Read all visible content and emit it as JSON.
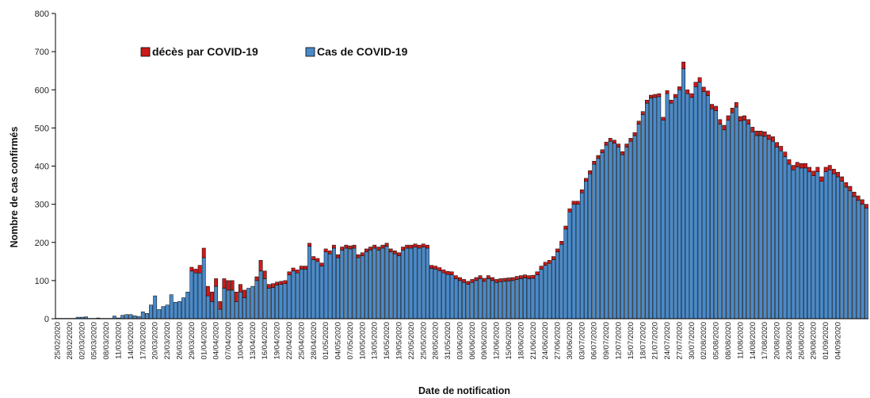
{
  "chart_data": {
    "type": "bar",
    "stacked": true,
    "title": "",
    "xlabel": "Date de notification",
    "ylabel": "Nombre de cas confirmés",
    "ylim": [
      0,
      800
    ],
    "yticks": [
      0,
      100,
      200,
      300,
      400,
      500,
      600,
      700,
      800
    ],
    "grid": false,
    "legend_position": "top-left",
    "start_date": "2020-02-25",
    "end_date": "2020-09-04",
    "xtick_labels": [
      "25/02/2020",
      "28/02/2020",
      "02/03/2020",
      "05/03/2020",
      "08/03/2020",
      "11/03/2020",
      "14/03/2020",
      "17/03/2020",
      "20/03/2020",
      "23/03/2020",
      "26/03/2020",
      "29/03/2020",
      "01/04/2020",
      "04/04/2020",
      "07/04/2020",
      "10/04/2020",
      "13/04/2020",
      "16/04/2020",
      "19/04/2020",
      "22/04/2020",
      "25/04/2020",
      "28/04/2020",
      "01/05/2020",
      "04/05/2020",
      "07/05/2020",
      "10/05/2020",
      "13/05/2020",
      "16/05/2020",
      "19/05/2020",
      "22/05/2020",
      "25/05/2020",
      "28/05/2020",
      "31/05/2020",
      "03/06/2020",
      "06/06/2020",
      "09/06/2020",
      "12/06/2020",
      "15/06/2020",
      "18/06/2020",
      "21/06/2020",
      "24/06/2020",
      "27/06/2020",
      "30/06/2020",
      "03/07/2020",
      "06/07/2020",
      "09/07/2020",
      "12/07/2020",
      "15/07/2020",
      "18/07/2020",
      "21/07/2020",
      "24/07/2020",
      "27/07/2020",
      "30/07/2020",
      "02/08/2020",
      "05/08/2020",
      "08/08/2020",
      "11/08/2020",
      "14/08/2020",
      "17/08/2020",
      "20/08/2020",
      "23/08/2020",
      "26/08/2020",
      "29/08/2020",
      "01/09/2020",
      "04/09/2020"
    ],
    "series": [
      {
        "name": "Cas de COVID-19",
        "color": "#4a8ac9",
        "values": [
          1,
          1,
          1,
          1,
          1,
          4,
          4,
          5,
          1,
          1,
          2,
          1,
          1,
          1,
          7,
          2,
          9,
          11,
          11,
          8,
          6,
          18,
          14,
          36,
          60,
          24,
          32,
          36,
          63,
          43,
          45,
          55,
          70,
          125,
          120,
          120,
          160,
          60,
          45,
          85,
          25,
          80,
          75,
          75,
          45,
          70,
          55,
          80,
          85,
          100,
          125,
          105,
          80,
          82,
          88,
          90,
          92,
          115,
          125,
          120,
          130,
          130,
          190,
          155,
          150,
          138,
          175,
          170,
          185,
          160,
          180,
          185,
          183,
          185,
          160,
          165,
          175,
          180,
          185,
          180,
          185,
          190,
          175,
          170,
          165,
          180,
          185,
          185,
          188,
          185,
          188,
          185,
          132,
          130,
          126,
          120,
          116,
          115,
          105,
          100,
          95,
          90,
          95,
          100,
          105,
          98,
          105,
          100,
          95,
          97,
          98,
          99,
          100,
          103,
          105,
          107,
          105,
          106,
          115,
          130,
          140,
          145,
          155,
          175,
          195,
          235,
          280,
          300,
          300,
          330,
          360,
          380,
          405,
          420,
          435,
          455,
          465,
          460,
          450,
          430,
          450,
          465,
          480,
          510,
          535,
          565,
          578,
          580,
          582,
          520,
          590,
          565,
          580,
          600,
          655,
          590,
          580,
          608,
          620,
          595,
          585,
          550,
          545,
          510,
          495,
          520,
          540,
          555,
          518,
          520,
          510,
          490,
          480,
          480,
          478,
          470,
          465,
          450,
          440,
          425,
          405,
          390,
          398,
          395,
          395,
          385,
          375,
          385,
          360,
          385,
          390,
          380,
          372,
          360,
          345,
          335,
          320,
          310,
          300,
          290
        ]
      },
      {
        "name": "décès par COVID-19",
        "color": "#cc1a1a",
        "values": [
          0,
          0,
          0,
          0,
          0,
          0,
          0,
          0,
          0,
          0,
          0,
          0,
          0,
          0,
          0,
          0,
          0,
          0,
          0,
          0,
          0,
          0,
          0,
          0,
          0,
          0,
          0,
          0,
          0,
          0,
          0,
          0,
          0,
          10,
          10,
          20,
          25,
          25,
          25,
          20,
          20,
          25,
          25,
          25,
          25,
          20,
          20,
          0,
          0,
          10,
          28,
          20,
          10,
          10,
          8,
          8,
          8,
          8,
          8,
          8,
          8,
          8,
          8,
          8,
          8,
          8,
          8,
          8,
          8,
          8,
          8,
          8,
          8,
          8,
          8,
          8,
          8,
          8,
          8,
          8,
          8,
          8,
          8,
          8,
          8,
          8,
          8,
          8,
          8,
          8,
          8,
          8,
          8,
          8,
          8,
          8,
          8,
          8,
          8,
          8,
          8,
          8,
          8,
          8,
          8,
          8,
          8,
          8,
          8,
          8,
          8,
          8,
          8,
          8,
          8,
          8,
          8,
          8,
          8,
          8,
          8,
          8,
          8,
          8,
          8,
          8,
          8,
          8,
          8,
          8,
          8,
          8,
          8,
          8,
          8,
          8,
          8,
          8,
          8,
          8,
          8,
          8,
          8,
          8,
          8,
          8,
          8,
          8,
          8,
          8,
          8,
          8,
          8,
          8,
          18,
          10,
          10,
          12,
          12,
          12,
          12,
          12,
          12,
          12,
          12,
          12,
          12,
          12,
          12,
          12,
          12,
          12,
          12,
          12,
          12,
          12,
          12,
          12,
          12,
          12,
          12,
          12,
          12,
          12,
          12,
          12,
          12,
          12,
          12,
          12,
          12,
          12,
          12,
          12,
          12,
          12,
          12,
          12,
          12,
          10
        ]
      }
    ]
  }
}
